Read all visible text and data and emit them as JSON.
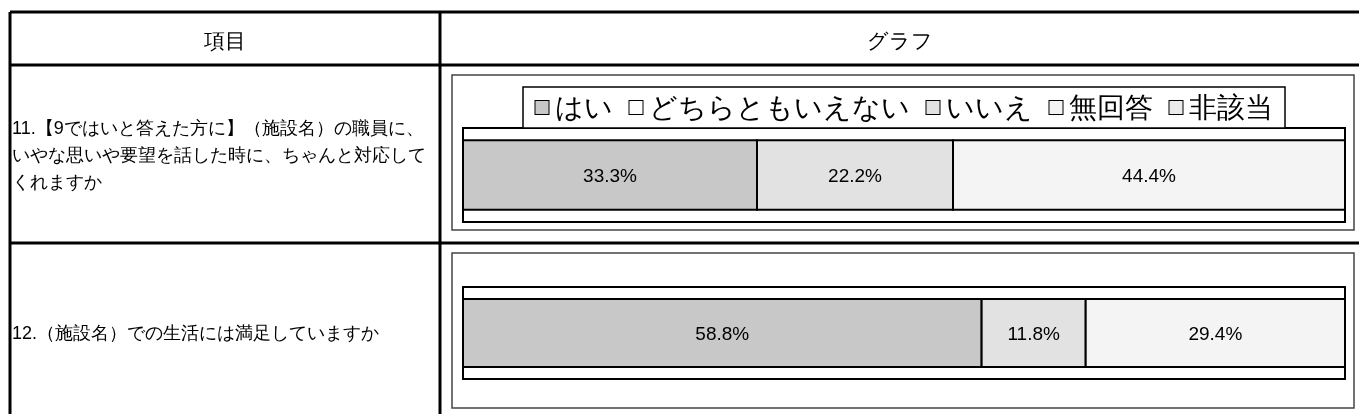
{
  "chart_data": [
    {
      "type": "other",
      "annotations": [
        "項目",
        "グラフ"
      ]
    },
    {
      "type": "bar",
      "orientation": "horizontal",
      "stacked": true,
      "categories": [
        "11.【9ではいと答えた方に】（施設名）の職員に、いやな思いや要望を話した時に、ちゃんと対応してくれますか"
      ],
      "tick_labels": "y",
      "legend": "top",
      "series": [
        {
          "name": "はい",
          "color": "#c8c8c8",
          "values": [
            33.3
          ],
          "value_labels": [
            "33.3%"
          ]
        },
        {
          "name": "どちらともいえない",
          "color": "#ffffff",
          "values": [
            0
          ],
          "value_labels": [
            null
          ]
        },
        {
          "name": "いいえ",
          "color": "#e2e2e2",
          "values": [
            22.2
          ],
          "value_labels": [
            "22.2%"
          ]
        },
        {
          "name": "無回答",
          "color": "#f4f4f4",
          "values": [
            44.4
          ],
          "value_labels": [
            "44.4%"
          ]
        },
        {
          "name": "非該当",
          "color": "#ebebeb",
          "values": [
            0
          ],
          "value_labels": [
            null
          ]
        }
      ]
    },
    {
      "type": "bar",
      "orientation": "horizontal",
      "stacked": true,
      "categories": [
        "12.（施設名）での生活には満足していますか"
      ],
      "tick_labels": "y",
      "series": [
        {
          "color": "#c8c8c8",
          "values": [
            58.8
          ],
          "value_labels": [
            "58.8%"
          ]
        },
        {
          "color": "#e2e2e2",
          "values": [
            11.8
          ],
          "value_labels": [
            "11.8%"
          ]
        },
        {
          "color": "#f4f4f4",
          "values": [
            29.4
          ],
          "value_labels": [
            "29.4%"
          ]
        }
      ]
    }
  ]
}
